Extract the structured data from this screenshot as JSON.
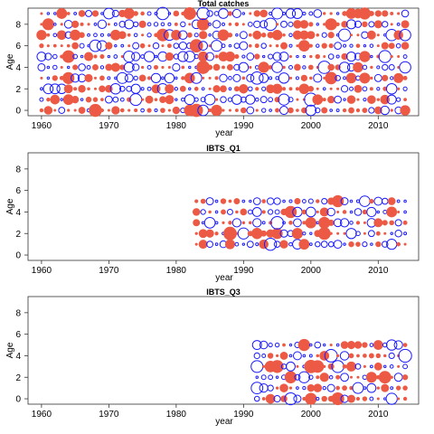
{
  "chart_data": [
    {
      "type": "scatter",
      "subtype": "bubble",
      "title": "Total catches",
      "xlabel": "year",
      "ylabel": "Age",
      "xlim": [
        1958,
        2016
      ],
      "ylim": [
        -0.5,
        9.5
      ],
      "x_ticks": [
        1960,
        1970,
        1980,
        1990,
        2000,
        2010
      ],
      "y_ticks": [
        0,
        2,
        4,
        6,
        8
      ],
      "grid": false,
      "years": [
        1960,
        2014
      ],
      "ages": [
        0,
        9
      ],
      "series": [
        {
          "name": "",
          "color": "#ec5a45",
          "style": "filled",
          "sign": "positive"
        },
        {
          "name": "",
          "color": "#1a1aff",
          "style": "open",
          "sign": "negative"
        }
      ]
    },
    {
      "type": "scatter",
      "subtype": "bubble",
      "title": "IBTS_Q1",
      "xlabel": "year",
      "ylabel": "Age",
      "xlim": [
        1958,
        2016
      ],
      "ylim": [
        -0.5,
        9.5
      ],
      "x_ticks": [
        1960,
        1970,
        1980,
        1990,
        2000,
        2010
      ],
      "y_ticks": [
        0,
        2,
        4,
        6,
        8
      ],
      "grid": false,
      "years": [
        1983,
        2014
      ],
      "ages": [
        1,
        5
      ],
      "series": [
        {
          "name": "",
          "color": "#ec5a45",
          "style": "filled",
          "sign": "positive"
        },
        {
          "name": "",
          "color": "#1a1aff",
          "style": "open",
          "sign": "negative"
        }
      ]
    },
    {
      "type": "scatter",
      "subtype": "bubble",
      "title": "IBTS_Q3",
      "xlabel": "year",
      "ylabel": "Age",
      "xlim": [
        1958,
        2016
      ],
      "ylim": [
        -0.5,
        9.5
      ],
      "x_ticks": [
        1960,
        1970,
        1980,
        1990,
        2000,
        2010
      ],
      "y_ticks": [
        0,
        2,
        4,
        6,
        8
      ],
      "grid": false,
      "years": [
        1992,
        2014
      ],
      "ages": [
        0,
        5
      ],
      "series": [
        {
          "name": "",
          "color": "#ec5a45",
          "style": "filled",
          "sign": "positive"
        },
        {
          "name": "",
          "color": "#1a1aff",
          "style": "open",
          "sign": "negative"
        }
      ]
    }
  ]
}
